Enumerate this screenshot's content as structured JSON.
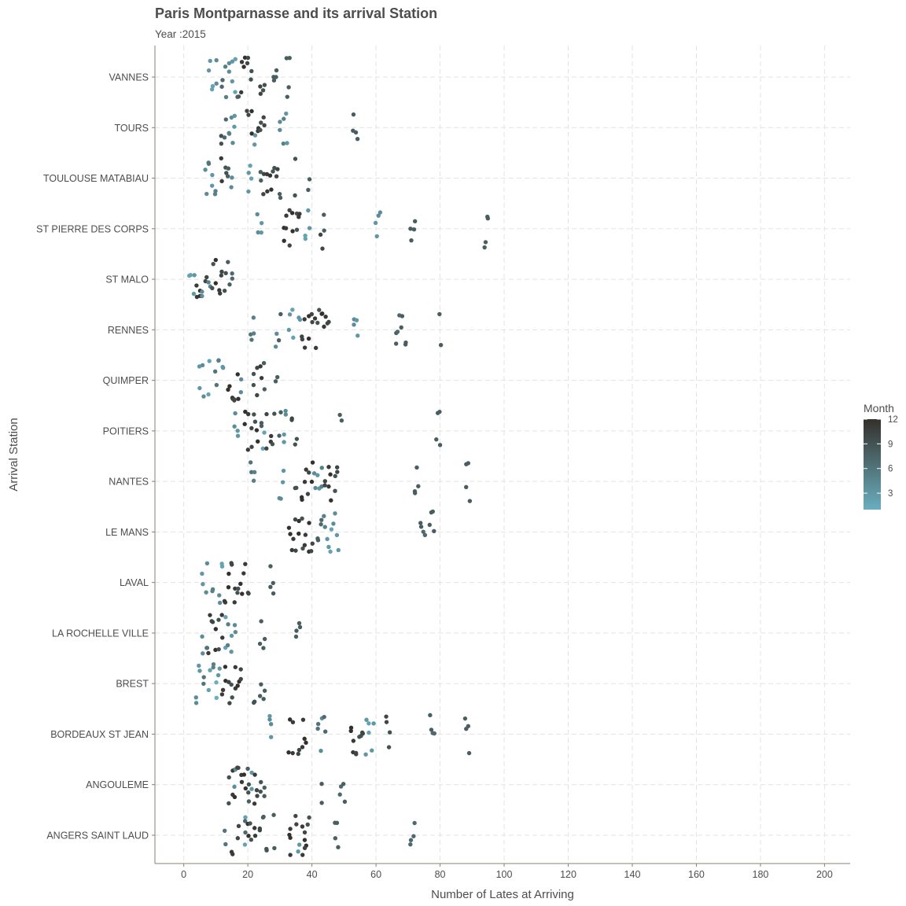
{
  "chart_data": {
    "type": "scatter",
    "title": "Paris Montparnasse and its arrival Station",
    "subtitle": "Year :2015",
    "xlabel": "Number of Lates at Arriving",
    "ylabel": "Arrival Station",
    "xlim": [
      -9,
      208
    ],
    "xticks": [
      0,
      20,
      40,
      60,
      80,
      100,
      120,
      140,
      160,
      180,
      200
    ],
    "categories": [
      "ANGERS SAINT LAUD",
      "ANGOULEME",
      "BORDEAUX ST JEAN",
      "BREST",
      "LA ROCHELLE VILLE",
      "LAVAL",
      "LE MANS",
      "NANTES",
      "POITIERS",
      "QUIMPER",
      "RENNES",
      "ST MALO",
      "ST PIERRE DES CORPS",
      "TOULOUSE MATABIAU",
      "TOURS",
      "VANNES"
    ],
    "grid": "dashed",
    "point_jitter": "vertical",
    "color_scale": {
      "name": "Month",
      "low": "#6aaebf",
      "high": "#35302b",
      "min": 1,
      "max": 12,
      "breaks": [
        3,
        6,
        9,
        12
      ]
    },
    "legend_position": "right",
    "series": [
      {
        "category": "ANGERS SAINT LAUD",
        "points": [
          [
            13,
            6
          ],
          [
            15,
            11
          ],
          [
            17,
            10
          ],
          [
            19,
            2
          ],
          [
            19,
            7
          ],
          [
            20,
            12
          ],
          [
            21,
            9
          ],
          [
            22,
            11
          ],
          [
            24,
            10
          ],
          [
            25,
            8
          ],
          [
            26,
            9
          ],
          [
            28,
            8
          ],
          [
            33,
            12
          ],
          [
            33,
            11
          ],
          [
            35,
            10
          ],
          [
            36,
            3
          ],
          [
            37,
            11
          ],
          [
            38,
            12
          ],
          [
            38,
            10
          ],
          [
            39,
            9
          ],
          [
            47,
            8
          ],
          [
            48,
            8
          ],
          [
            71,
            7
          ],
          [
            72,
            7
          ]
        ]
      },
      {
        "category": "ANGOULEME",
        "points": [
          [
            14,
            9
          ],
          [
            15,
            11
          ],
          [
            16,
            12
          ],
          [
            16,
            4
          ],
          [
            17,
            10
          ],
          [
            18,
            11
          ],
          [
            19,
            12
          ],
          [
            20,
            9
          ],
          [
            20,
            8
          ],
          [
            21,
            3
          ],
          [
            22,
            11
          ],
          [
            23,
            10
          ],
          [
            24,
            9
          ],
          [
            25,
            8
          ],
          [
            43,
            8
          ],
          [
            49,
            7
          ],
          [
            50,
            8
          ]
        ]
      },
      {
        "category": "BORDEAUX ST JEAN",
        "points": [
          [
            27,
            4
          ],
          [
            27,
            3
          ],
          [
            33,
            12
          ],
          [
            34,
            11
          ],
          [
            36,
            10
          ],
          [
            37,
            11
          ],
          [
            38,
            12
          ],
          [
            42,
            6
          ],
          [
            43,
            4
          ],
          [
            44,
            7
          ],
          [
            52,
            12
          ],
          [
            53,
            11
          ],
          [
            54,
            10
          ],
          [
            55,
            9
          ],
          [
            56,
            10
          ],
          [
            57,
            3
          ],
          [
            58,
            2
          ],
          [
            59,
            3
          ],
          [
            63,
            10
          ],
          [
            64,
            9
          ],
          [
            77,
            8
          ],
          [
            78,
            7
          ],
          [
            88,
            8
          ],
          [
            89,
            8
          ]
        ]
      },
      {
        "category": "BREST",
        "points": [
          [
            4,
            4
          ],
          [
            5,
            3
          ],
          [
            6,
            6
          ],
          [
            8,
            2
          ],
          [
            9,
            5
          ],
          [
            10,
            1
          ],
          [
            11,
            3
          ],
          [
            12,
            11
          ],
          [
            13,
            12
          ],
          [
            14,
            10
          ],
          [
            15,
            9
          ],
          [
            16,
            11
          ],
          [
            17,
            12
          ],
          [
            18,
            10
          ],
          [
            22,
            9
          ],
          [
            24,
            8
          ],
          [
            25,
            8
          ]
        ]
      },
      {
        "category": "LA ROCHELLE VILLE",
        "points": [
          [
            6,
            4
          ],
          [
            7,
            6
          ],
          [
            8,
            11
          ],
          [
            9,
            10
          ],
          [
            10,
            12
          ],
          [
            11,
            9
          ],
          [
            12,
            11
          ],
          [
            13,
            2
          ],
          [
            14,
            5
          ],
          [
            15,
            3
          ],
          [
            16,
            4
          ],
          [
            24,
            8
          ],
          [
            25,
            8
          ],
          [
            35,
            8
          ],
          [
            36,
            8
          ]
        ]
      },
      {
        "category": "LAVAL",
        "points": [
          [
            6,
            3
          ],
          [
            7,
            4
          ],
          [
            9,
            5
          ],
          [
            11,
            4
          ],
          [
            12,
            2
          ],
          [
            13,
            11
          ],
          [
            14,
            12
          ],
          [
            15,
            10
          ],
          [
            16,
            11
          ],
          [
            17,
            9
          ],
          [
            18,
            12
          ],
          [
            19,
            11
          ],
          [
            20,
            10
          ],
          [
            27,
            8
          ],
          [
            28,
            8
          ]
        ]
      },
      {
        "category": "LE MANS",
        "points": [
          [
            33,
            12
          ],
          [
            34,
            11
          ],
          [
            35,
            10
          ],
          [
            36,
            12
          ],
          [
            37,
            9
          ],
          [
            38,
            11
          ],
          [
            39,
            12
          ],
          [
            40,
            10
          ],
          [
            42,
            8
          ],
          [
            43,
            7
          ],
          [
            44,
            5
          ],
          [
            45,
            3
          ],
          [
            46,
            2
          ],
          [
            47,
            4
          ],
          [
            48,
            3
          ],
          [
            74,
            8
          ],
          [
            75,
            7
          ],
          [
            77,
            8
          ],
          [
            78,
            8
          ]
        ]
      },
      {
        "category": "NANTES",
        "points": [
          [
            21,
            6
          ],
          [
            22,
            5
          ],
          [
            30,
            4
          ],
          [
            31,
            3
          ],
          [
            35,
            9
          ],
          [
            37,
            12
          ],
          [
            38,
            11
          ],
          [
            39,
            10
          ],
          [
            40,
            12
          ],
          [
            41,
            4
          ],
          [
            42,
            3
          ],
          [
            43,
            5
          ],
          [
            44,
            10
          ],
          [
            45,
            11
          ],
          [
            46,
            12
          ],
          [
            47,
            9
          ],
          [
            48,
            10
          ],
          [
            72,
            8
          ],
          [
            73,
            8
          ],
          [
            88,
            8
          ],
          [
            89,
            8
          ]
        ]
      },
      {
        "category": "POITIERS",
        "points": [
          [
            16,
            4
          ],
          [
            17,
            3
          ],
          [
            19,
            12
          ],
          [
            20,
            11
          ],
          [
            21,
            10
          ],
          [
            22,
            9
          ],
          [
            23,
            12
          ],
          [
            24,
            8
          ],
          [
            25,
            2
          ],
          [
            26,
            10
          ],
          [
            27,
            11
          ],
          [
            28,
            9
          ],
          [
            30,
            8
          ],
          [
            31,
            3
          ],
          [
            32,
            4
          ],
          [
            34,
            10
          ],
          [
            35,
            9
          ],
          [
            49,
            8
          ],
          [
            79,
            8
          ],
          [
            80,
            8
          ]
        ]
      },
      {
        "category": "QUIMPER",
        "points": [
          [
            5,
            3
          ],
          [
            6,
            4
          ],
          [
            8,
            2
          ],
          [
            10,
            6
          ],
          [
            11,
            5
          ],
          [
            12,
            3
          ],
          [
            14,
            12
          ],
          [
            15,
            11
          ],
          [
            16,
            10
          ],
          [
            17,
            12
          ],
          [
            18,
            4
          ],
          [
            22,
            9
          ],
          [
            23,
            10
          ],
          [
            24,
            11
          ],
          [
            25,
            8
          ],
          [
            29,
            8
          ]
        ]
      },
      {
        "category": "RENNES",
        "points": [
          [
            21,
            6
          ],
          [
            22,
            5
          ],
          [
            29,
            4
          ],
          [
            30,
            8
          ],
          [
            33,
            3
          ],
          [
            34,
            2
          ],
          [
            36,
            3
          ],
          [
            37,
            10
          ],
          [
            38,
            11
          ],
          [
            39,
            12
          ],
          [
            40,
            10
          ],
          [
            41,
            11
          ],
          [
            42,
            9
          ],
          [
            43,
            12
          ],
          [
            44,
            11
          ],
          [
            45,
            10
          ],
          [
            53,
            4
          ],
          [
            54,
            3
          ],
          [
            66,
            8
          ],
          [
            67,
            7
          ],
          [
            68,
            8
          ],
          [
            69,
            8
          ],
          [
            80,
            8
          ]
        ]
      },
      {
        "category": "ST MALO",
        "points": [
          [
            2,
            2
          ],
          [
            3,
            3
          ],
          [
            4,
            11
          ],
          [
            5,
            12
          ],
          [
            6,
            4
          ],
          [
            7,
            10
          ],
          [
            8,
            5
          ],
          [
            9,
            9
          ],
          [
            10,
            12
          ],
          [
            11,
            11
          ],
          [
            12,
            10
          ],
          [
            13,
            9
          ],
          [
            14,
            8
          ],
          [
            15,
            7
          ]
        ]
      },
      {
        "category": "ST PIERRE DES CORPS",
        "points": [
          [
            23,
            4
          ],
          [
            24,
            3
          ],
          [
            31,
            12
          ],
          [
            32,
            11
          ],
          [
            33,
            10
          ],
          [
            34,
            12
          ],
          [
            35,
            9
          ],
          [
            36,
            11
          ],
          [
            38,
            2
          ],
          [
            39,
            3
          ],
          [
            43,
            10
          ],
          [
            44,
            8
          ],
          [
            60,
            3
          ],
          [
            61,
            4
          ],
          [
            71,
            8
          ],
          [
            72,
            8
          ],
          [
            94,
            8
          ],
          [
            95,
            8
          ]
        ]
      },
      {
        "category": "TOULOUSE MATABIAU",
        "points": [
          [
            7,
            4
          ],
          [
            8,
            6
          ],
          [
            9,
            3
          ],
          [
            10,
            5
          ],
          [
            12,
            11
          ],
          [
            13,
            9
          ],
          [
            14,
            8
          ],
          [
            15,
            4
          ],
          [
            20,
            3
          ],
          [
            21,
            2
          ],
          [
            24,
            8
          ],
          [
            25,
            10
          ],
          [
            26,
            11
          ],
          [
            27,
            12
          ],
          [
            28,
            9
          ],
          [
            29,
            10
          ],
          [
            30,
            8
          ],
          [
            35,
            9
          ],
          [
            39,
            8
          ]
        ]
      },
      {
        "category": "TOURS",
        "points": [
          [
            12,
            9
          ],
          [
            13,
            7
          ],
          [
            14,
            5
          ],
          [
            15,
            4
          ],
          [
            16,
            3
          ],
          [
            20,
            10
          ],
          [
            21,
            12
          ],
          [
            22,
            3
          ],
          [
            23,
            11
          ],
          [
            24,
            9
          ],
          [
            25,
            10
          ],
          [
            30,
            4
          ],
          [
            31,
            5
          ],
          [
            32,
            3
          ],
          [
            53,
            8
          ],
          [
            54,
            8
          ]
        ]
      },
      {
        "category": "VANNES",
        "points": [
          [
            8,
            3
          ],
          [
            9,
            2
          ],
          [
            10,
            4
          ],
          [
            12,
            7
          ],
          [
            13,
            5
          ],
          [
            14,
            4
          ],
          [
            15,
            3
          ],
          [
            16,
            2
          ],
          [
            17,
            8
          ],
          [
            18,
            11
          ],
          [
            19,
            12
          ],
          [
            20,
            10
          ],
          [
            21,
            9
          ],
          [
            24,
            10
          ],
          [
            25,
            9
          ],
          [
            28,
            8
          ],
          [
            29,
            8
          ],
          [
            32,
            8
          ],
          [
            33,
            8
          ]
        ]
      }
    ]
  }
}
